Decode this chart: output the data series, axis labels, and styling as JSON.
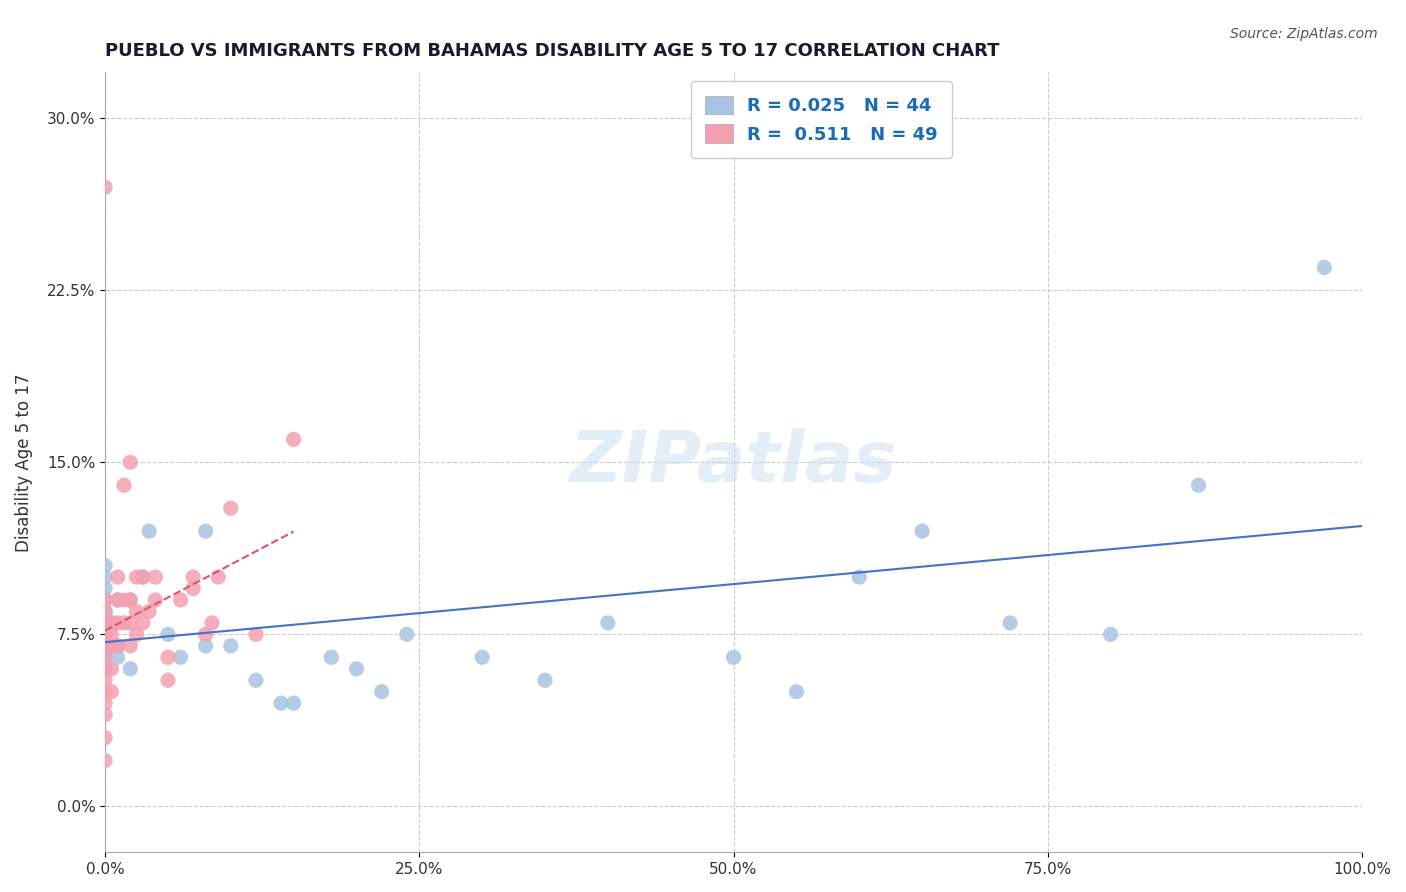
{
  "title": "PUEBLO VS IMMIGRANTS FROM BAHAMAS DISABILITY AGE 5 TO 17 CORRELATION CHART",
  "source": "Source: ZipAtlas.com",
  "ylabel": "Disability Age 5 to 17",
  "xlabel": "",
  "xlim": [
    0.0,
    1.0
  ],
  "ylim": [
    -0.02,
    0.32
  ],
  "xticks": [
    0.0,
    0.25,
    0.5,
    0.75,
    1.0
  ],
  "xticklabels": [
    "0.0%",
    "25.0%",
    "50.0%",
    "75.0%",
    "100.0%"
  ],
  "yticks": [
    0.0,
    0.075,
    0.15,
    0.225,
    0.3
  ],
  "yticklabels": [
    "0.0%",
    "7.5%",
    "15.0%",
    "22.5%",
    "30.0%"
  ],
  "pueblo_r": 0.025,
  "pueblo_n": 44,
  "bahamas_r": 0.511,
  "bahamas_n": 49,
  "pueblo_color": "#a8c4e0",
  "bahamas_color": "#f4a0b0",
  "pueblo_line_color": "#4472c4",
  "bahamas_line_color": "#e05070",
  "watermark": "ZIPatlas",
  "background_color": "#ffffff",
  "pueblo_scatter_x": [
    0.0,
    0.0,
    0.0,
    0.0,
    0.0,
    0.0,
    0.0,
    0.0,
    0.0,
    0.0,
    0.0,
    0.0,
    0.005,
    0.005,
    0.01,
    0.01,
    0.01,
    0.02,
    0.02,
    0.03,
    0.035,
    0.05,
    0.06,
    0.08,
    0.08,
    0.1,
    0.12,
    0.14,
    0.15,
    0.18,
    0.2,
    0.22,
    0.24,
    0.3,
    0.35,
    0.4,
    0.5,
    0.55,
    0.6,
    0.65,
    0.72,
    0.8,
    0.87,
    0.97
  ],
  "pueblo_scatter_y": [
    0.06,
    0.065,
    0.07,
    0.072,
    0.075,
    0.078,
    0.08,
    0.085,
    0.09,
    0.095,
    0.1,
    0.105,
    0.07,
    0.08,
    0.065,
    0.07,
    0.09,
    0.06,
    0.09,
    0.1,
    0.12,
    0.075,
    0.065,
    0.12,
    0.07,
    0.07,
    0.055,
    0.045,
    0.045,
    0.065,
    0.06,
    0.05,
    0.075,
    0.065,
    0.055,
    0.08,
    0.065,
    0.05,
    0.1,
    0.12,
    0.08,
    0.075,
    0.14,
    0.235
  ],
  "bahamas_scatter_x": [
    0.0,
    0.0,
    0.0,
    0.0,
    0.0,
    0.0,
    0.0,
    0.0,
    0.0,
    0.0,
    0.0,
    0.0,
    0.0,
    0.0,
    0.005,
    0.005,
    0.005,
    0.005,
    0.005,
    0.01,
    0.01,
    0.01,
    0.01,
    0.015,
    0.015,
    0.015,
    0.02,
    0.02,
    0.02,
    0.02,
    0.025,
    0.025,
    0.025,
    0.03,
    0.03,
    0.035,
    0.04,
    0.04,
    0.05,
    0.05,
    0.06,
    0.07,
    0.07,
    0.08,
    0.085,
    0.09,
    0.1,
    0.12,
    0.15
  ],
  "bahamas_scatter_y": [
    0.02,
    0.03,
    0.04,
    0.045,
    0.05,
    0.055,
    0.06,
    0.065,
    0.07,
    0.075,
    0.08,
    0.085,
    0.09,
    0.27,
    0.05,
    0.06,
    0.07,
    0.075,
    0.08,
    0.07,
    0.08,
    0.09,
    0.1,
    0.08,
    0.09,
    0.14,
    0.07,
    0.08,
    0.09,
    0.15,
    0.075,
    0.085,
    0.1,
    0.08,
    0.1,
    0.085,
    0.09,
    0.1,
    0.055,
    0.065,
    0.09,
    0.095,
    0.1,
    0.075,
    0.08,
    0.1,
    0.13,
    0.075,
    0.16
  ]
}
